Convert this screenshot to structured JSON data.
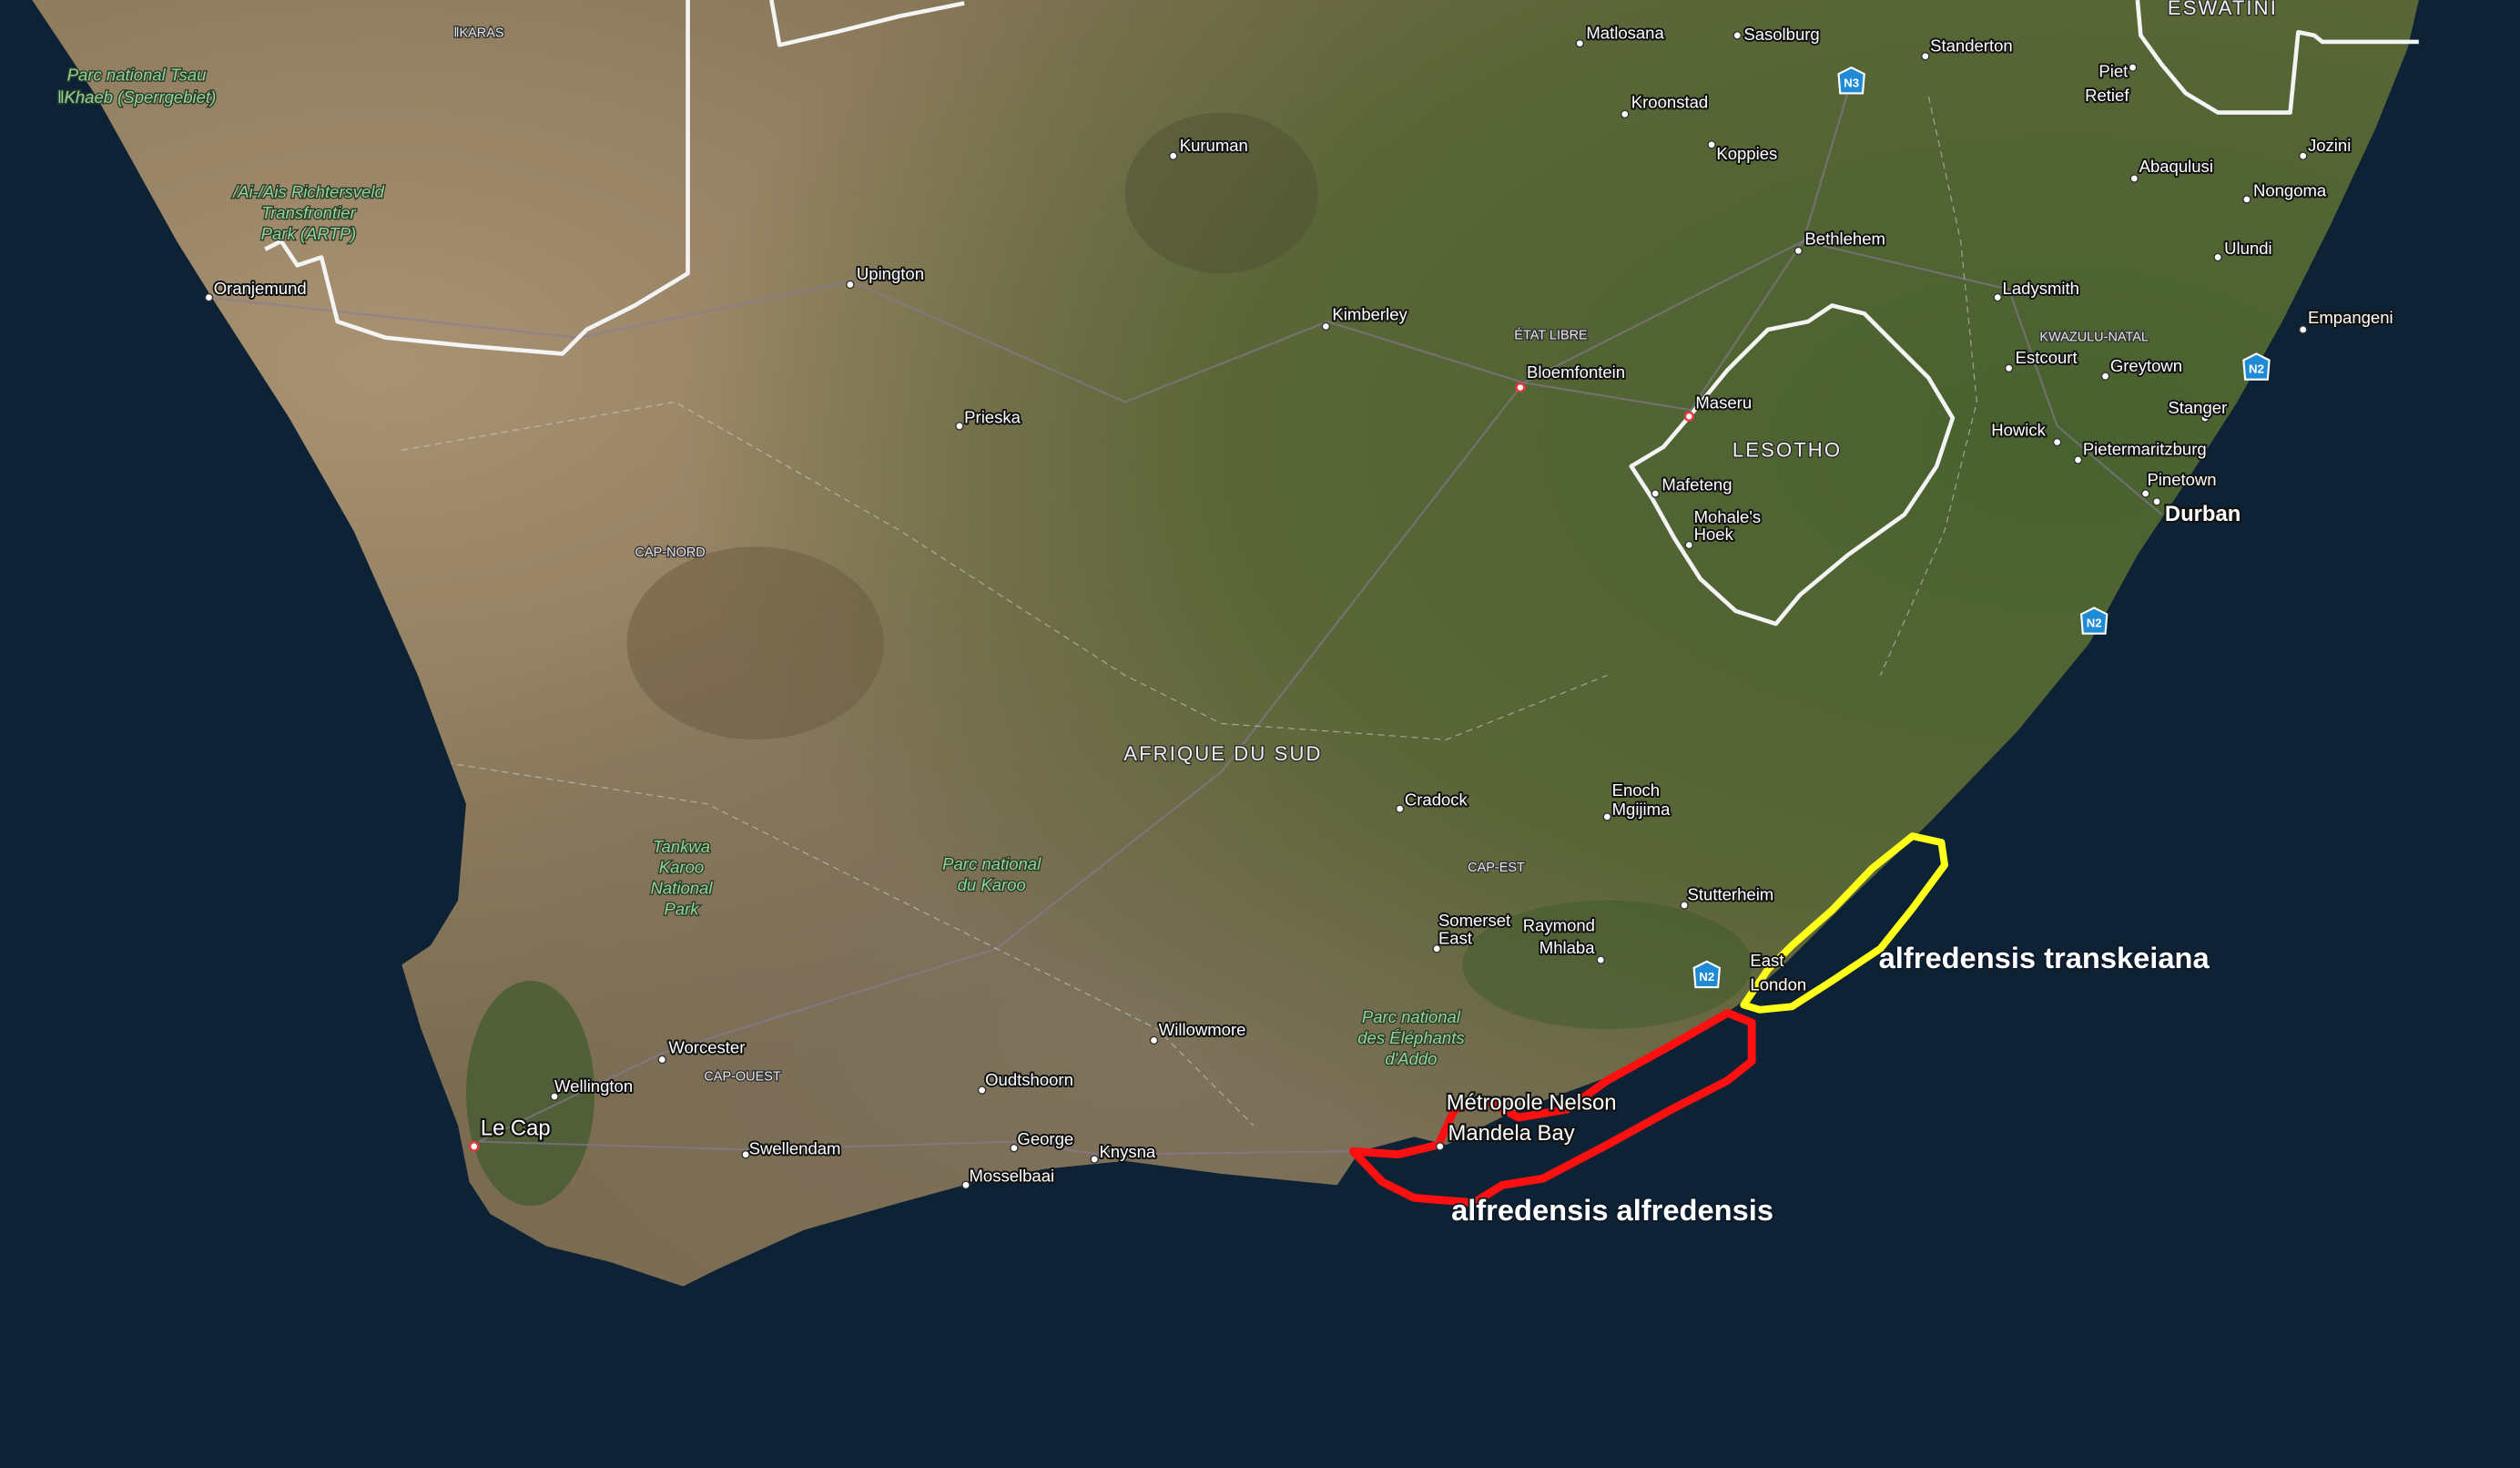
{
  "map": {
    "type": "satellite",
    "colors": {
      "ocean": "#0e2236",
      "land_arid": "#8e7a58",
      "land_green": "#3f5a2e",
      "range_red": "#ff1010",
      "range_yellow": "#ffff1a"
    },
    "countries": {
      "south_africa": "AFRIQUE DU SUD",
      "lesotho": "LESOTHO",
      "eswatini": "ESWATINI"
    },
    "regions": {
      "free_state": "ÉTAT LIBRE",
      "kwazulu_natal": "KWAZULU-NATAL",
      "northern_cape": "CAP-NORD",
      "eastern_cape": "CAP-EST",
      "western_cape": "CAP-OUEST",
      "karas": "ǁKARAS"
    },
    "parks": {
      "tsau": [
        "Parc national Tsau",
        "ǁKhaeb (Sperrgebiet)"
      ],
      "richtersveld": [
        "/Ai-/Ais Richtersveld",
        "Transfrontier",
        "Park (ARTP)"
      ],
      "tankwa": [
        "Tankwa",
        "Karoo",
        "National",
        "Park"
      ],
      "karoo": [
        "Parc national",
        "du Karoo"
      ],
      "addo": [
        "Parc national",
        "des Éléphants",
        "d'Addo"
      ]
    },
    "cities": {
      "matlosana": "Matlosana",
      "sasolburg": "Sasolburg",
      "standerton": "Standerton",
      "kroonstad": "Kroonstad",
      "koppies": "Koppies",
      "bethlehem": "Bethlehem",
      "piet_retief": [
        "Piet",
        "Retief"
      ],
      "kuruman": "Kuruman",
      "upington": "Upington",
      "oranjemund": "Oranjemund",
      "kimberley": "Kimberley",
      "bloemfontein": "Bloemfontein",
      "maseru": "Maseru",
      "mafeteng": "Mafeteng",
      "mohales_hoek": [
        "Mohale's",
        "Hoek"
      ],
      "prieska": "Prieska",
      "abaqulusi": "Abaqulusi",
      "jozini": "Jozini",
      "nongoma": "Nongoma",
      "ulundi": "Ulundi",
      "ladysmith": "Ladysmith",
      "empangeni": "Empangeni",
      "estcourt": "Estcourt",
      "greytown": "Greytown",
      "stanger": "Stanger",
      "howick": "Howick",
      "pietermaritzburg": "Pietermaritzburg",
      "pinetown": "Pinetown",
      "durban": "Durban",
      "cradock": "Cradock",
      "enoch_mgijima": [
        "Enoch",
        "Mgijima"
      ],
      "stutterheim": "Stutterheim",
      "somerset_east": [
        "Somerset",
        "East"
      ],
      "raymond_mhlaba": [
        "Raymond",
        "Mhlaba"
      ],
      "east_london": [
        "East",
        "London"
      ],
      "nelson_mandela_bay": [
        "Métropole Nelson",
        "Mandela Bay"
      ],
      "willowmore": "Willowmore",
      "worcester": "Worcester",
      "wellington": "Wellington",
      "le_cap": "Le Cap",
      "swellendam": "Swellendam",
      "oudtshoorn": "Oudtshoorn",
      "george": "George",
      "knysna": "Knysna",
      "mosselbaai": "Mosselbaai"
    },
    "highways": {
      "n3": "N3",
      "n2": "N2"
    },
    "annotations": {
      "transkeiana": "alfredensis transkeiana",
      "alfredensis": "alfredensis alfredensis"
    }
  }
}
